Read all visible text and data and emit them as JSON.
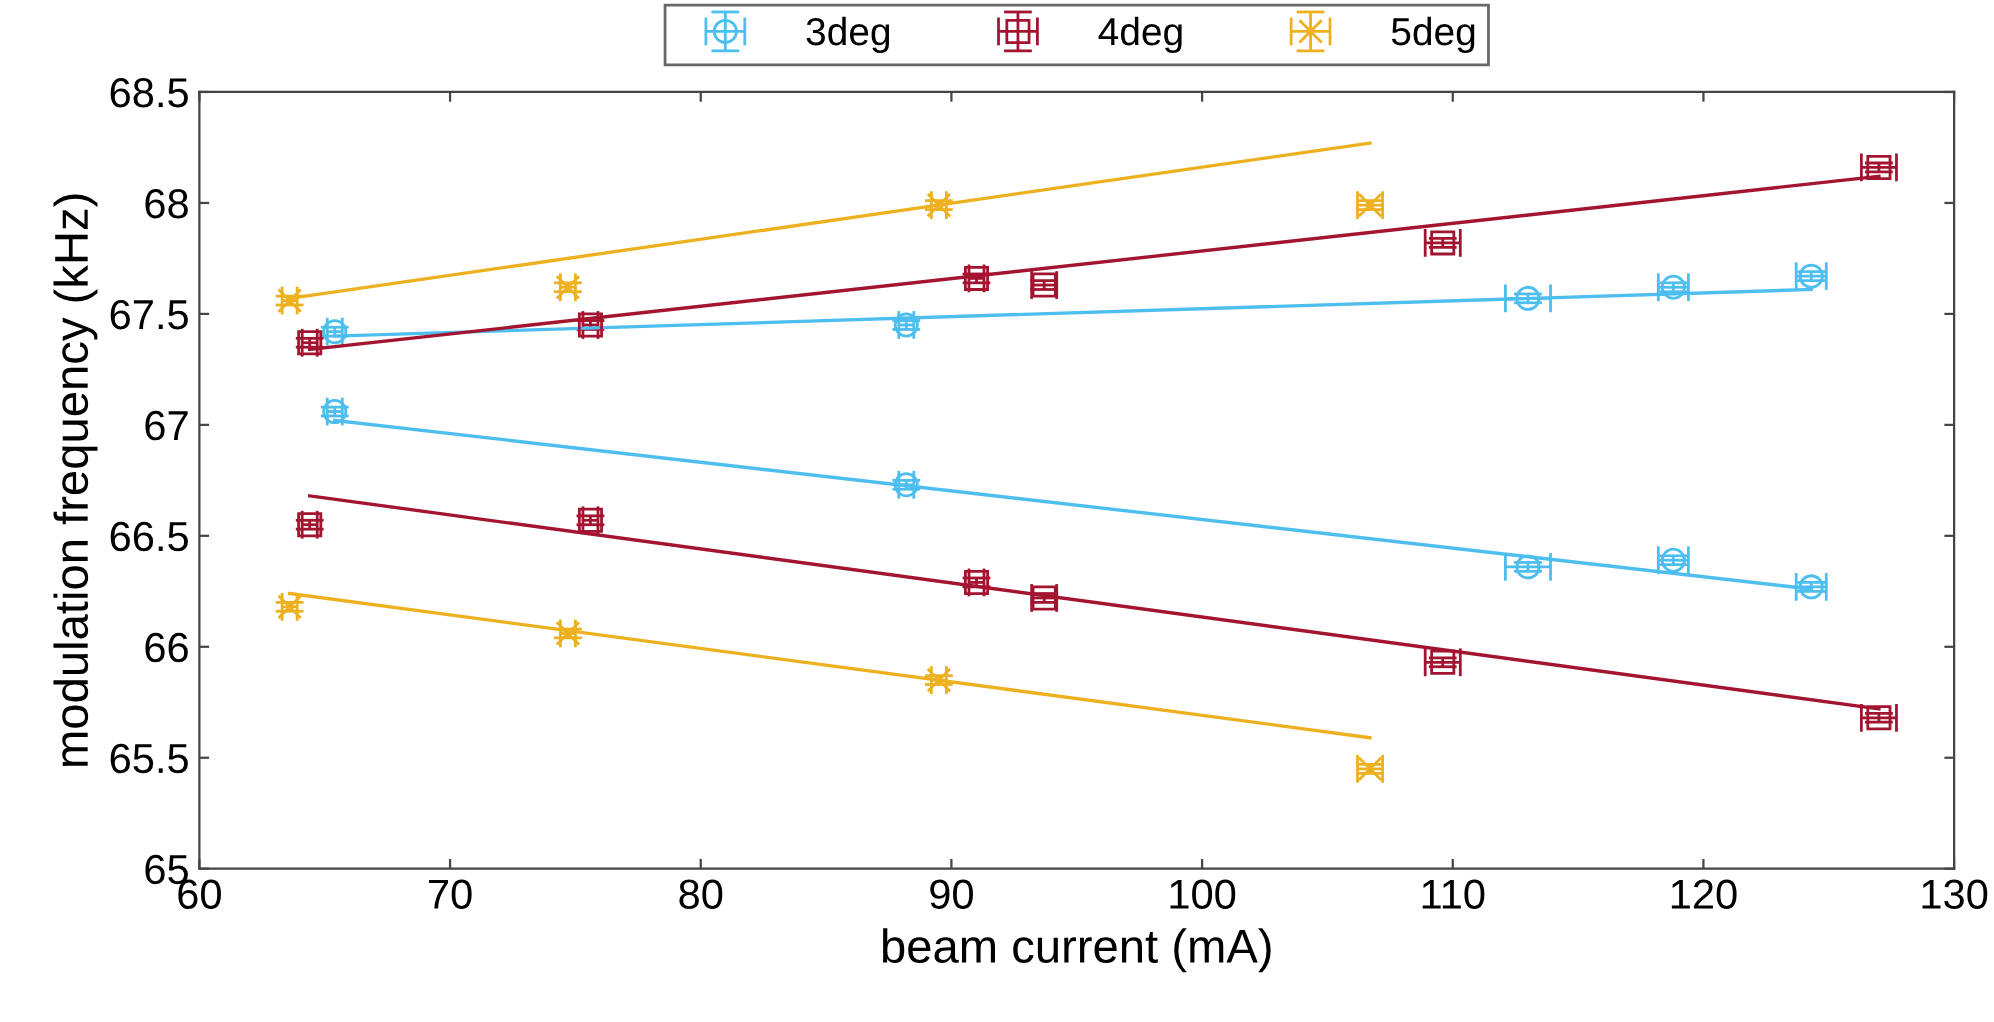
{
  "chart_data": {
    "type": "scatter",
    "xlabel": "beam current (mA)",
    "ylabel": "modulation frequency (kHz)",
    "xlim": [
      60,
      130
    ],
    "xticks": [
      60,
      70,
      80,
      90,
      100,
      110,
      120,
      130
    ],
    "ylim": [
      65,
      68.5
    ],
    "yticks": [
      65,
      {
        "value": 65.5,
        "label": "65.5"
      },
      66,
      {
        "value": 66.5,
        "label": "66.5"
      },
      67,
      {
        "value": 67.5,
        "label": "67.5"
      },
      68,
      {
        "value": 68.5,
        "label": "68.5"
      }
    ],
    "grid": false,
    "legend": "top",
    "series": [
      {
        "name": "3deg",
        "marker": "circle",
        "color": "#4dbeee",
        "x": [
          65.4,
          88.2,
          113.0,
          118.8,
          124.3
        ],
        "values": [
          67.42,
          67.45,
          67.57,
          67.62,
          67.67
        ],
        "xerrors": [
          0.3,
          0.3,
          0.9,
          0.6,
          0.6
        ],
        "errors": [
          0.02,
          0.02,
          0.02,
          0.02,
          0.02
        ]
      },
      {
        "marker": "circle",
        "color": "#4dbeee",
        "x": [
          65.4,
          88.2,
          113.0,
          118.8,
          124.3
        ],
        "values": [
          67.06,
          66.73,
          66.36,
          66.39,
          66.27
        ],
        "xerrors": [
          0.3,
          0.3,
          0.9,
          0.6,
          0.6
        ],
        "errors": [
          0.02,
          0.02,
          0.02,
          0.02,
          0.02
        ]
      },
      {
        "name": "4deg",
        "marker": "square",
        "color": "#a2142f",
        "x": [
          64.4,
          75.6,
          91.0,
          93.7,
          109.6,
          127.0
        ],
        "values": [
          67.37,
          67.45,
          67.66,
          67.63,
          67.82,
          68.16
        ],
        "xerrors": [
          0.3,
          0.3,
          0.3,
          0.5,
          0.7,
          0.7
        ],
        "errors": [
          0.02,
          0.02,
          0.02,
          0.02,
          0.02,
          0.02
        ]
      },
      {
        "marker": "square",
        "color": "#a2142f",
        "x": [
          64.4,
          75.6,
          91.0,
          93.7,
          109.6,
          127.0
        ],
        "values": [
          66.55,
          66.57,
          66.29,
          66.22,
          65.93,
          65.68
        ],
        "xerrors": [
          0.3,
          0.3,
          0.3,
          0.5,
          0.7,
          0.7
        ],
        "errors": [
          0.02,
          0.02,
          0.02,
          0.02,
          0.02,
          0.02
        ]
      },
      {
        "name": "5deg",
        "marker": "cross",
        "color": "#edb120",
        "x": [
          63.6,
          74.7,
          89.5,
          106.7
        ],
        "values": [
          67.56,
          67.62,
          67.99,
          67.99
        ],
        "xerrors": [
          0.3,
          0.3,
          0.3,
          0.5
        ],
        "errors": [
          0.02,
          0.02,
          0.02,
          0.02
        ]
      },
      {
        "marker": "cross",
        "color": "#edb120",
        "x": [
          63.6,
          74.7,
          89.5,
          106.7
        ],
        "values": [
          66.18,
          66.06,
          65.85,
          65.45
        ],
        "xerrors": [
          0.3,
          0.3,
          0.3,
          0.5
        ],
        "errors": [
          0.02,
          0.02,
          0.02,
          0.02
        ]
      },
      {
        "type": "line",
        "color": "#4dbeee",
        "x": [
          65.4,
          124.3
        ],
        "values": [
          67.4,
          67.61
        ]
      },
      {
        "type": "line",
        "color": "#4dbeee",
        "x": [
          65.4,
          124.3
        ],
        "values": [
          67.02,
          66.26
        ]
      },
      {
        "type": "line",
        "color": "#a2142f",
        "x": [
          64.4,
          127.0
        ],
        "values": [
          67.34,
          68.12
        ]
      },
      {
        "type": "line",
        "color": "#a2142f",
        "x": [
          64.4,
          127.0
        ],
        "values": [
          66.68,
          65.72
        ]
      },
      {
        "type": "line",
        "color": "#edb120",
        "x": [
          63.6,
          106.7
        ],
        "values": [
          67.57,
          68.27
        ]
      },
      {
        "type": "line",
        "color": "#edb120",
        "x": [
          63.6,
          106.7
        ],
        "values": [
          66.24,
          65.59
        ]
      }
    ]
  }
}
